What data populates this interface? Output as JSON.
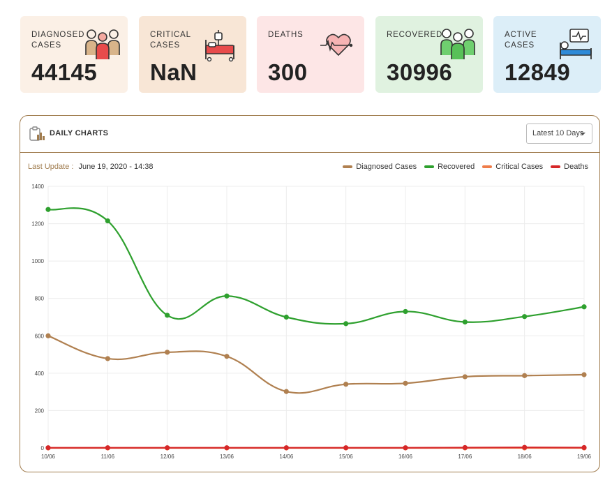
{
  "stats": [
    {
      "label": "Diagnosed Cases",
      "value": "44145",
      "bg": "#fbf0e6",
      "icon": "people-group-icon"
    },
    {
      "label": "Critical Cases",
      "value": "NaN",
      "bg": "#f8e6d6",
      "icon": "hospital-bed-icon"
    },
    {
      "label": "Deaths",
      "value": "300",
      "bg": "#fde6e6",
      "icon": "heartbeat-icon"
    },
    {
      "label": "Recovered",
      "value": "30996",
      "bg": "#e0f2e0",
      "icon": "recovered-people-icon"
    },
    {
      "label": "Active Cases",
      "value": "12849",
      "bg": "#dceef8",
      "icon": "patient-monitor-icon"
    }
  ],
  "panel": {
    "title": "Daily Charts",
    "range_select": "Latest 10 Days",
    "last_update_label": "Last Update :",
    "last_update_value": "June 19, 2020 - 14:38"
  },
  "chart_data": {
    "type": "line",
    "title": "Daily Charts",
    "categories": [
      "10/06",
      "11/06",
      "12/06",
      "13/06",
      "14/06",
      "15/06",
      "16/06",
      "17/06",
      "18/06",
      "19/06"
    ],
    "ylim": [
      0,
      1400
    ],
    "yticks": [
      0,
      200,
      400,
      600,
      800,
      1000,
      1200,
      1400
    ],
    "grid": true,
    "legend_position": "top-right",
    "series": [
      {
        "name": "Diagnosed Cases",
        "color": "#b08050",
        "values": [
          600,
          478,
          512,
          490,
          302,
          341,
          346,
          381,
          387,
          392
        ]
      },
      {
        "name": "Recovered",
        "color": "#2ea02e",
        "values": [
          1276,
          1215,
          710,
          813,
          700,
          665,
          730,
          674,
          703,
          755
        ]
      },
      {
        "name": "Critical Cases",
        "color": "#ef7d4a",
        "values": [
          0,
          0,
          0,
          0,
          0,
          0,
          0,
          0,
          0,
          0
        ]
      },
      {
        "name": "Deaths",
        "color": "#d62728",
        "values": [
          1,
          1,
          1,
          1,
          1,
          1,
          1,
          2,
          3,
          2
        ]
      }
    ]
  }
}
